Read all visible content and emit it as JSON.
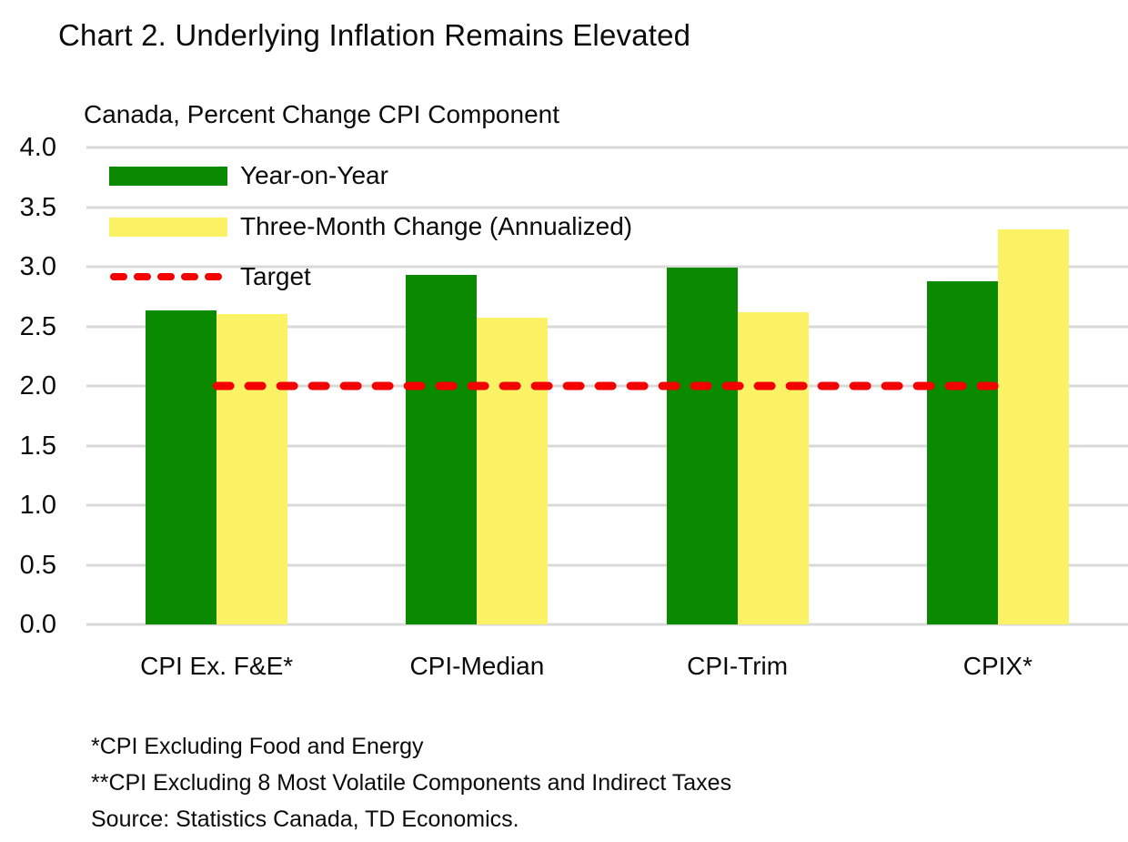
{
  "title": "Chart 2. Underlying Inflation Remains Elevated",
  "subtitle": "Canada, Percent Change CPI Component",
  "colors": {
    "green": "#0a8a00",
    "yellow": "#fbf266",
    "red": "#f40000",
    "gridline": "#d9d9d9",
    "text": "#0b0b0b"
  },
  "legend": {
    "position": "top-left",
    "items": [
      {
        "label": "Year-on-Year",
        "swatch": "green-rect",
        "color": "#0a8a00"
      },
      {
        "label": "Three-Month Change (Annualized)",
        "swatch": "yellow-rect",
        "color": "#fbf266"
      },
      {
        "label": "Target",
        "swatch": "red-dashed-line",
        "color": "#f40000"
      }
    ]
  },
  "chart_data": {
    "type": "bar",
    "title": "Chart 2. Underlying Inflation Remains Elevated",
    "subtitle": "Canada, Percent Change CPI Component",
    "categories": [
      "CPI Ex. F&E*",
      "CPI-Median",
      "CPI-Trim",
      "CPIX*"
    ],
    "series": [
      {
        "name": "Year-on-Year",
        "color": "#0a8a00",
        "values": [
          2.63,
          2.93,
          2.99,
          2.88
        ]
      },
      {
        "name": "Three-Month Change (Annualized)",
        "color": "#fbf266",
        "values": [
          2.6,
          2.57,
          2.62,
          3.31
        ]
      }
    ],
    "target_line": {
      "label": "Target",
      "value": 2.0,
      "color": "#f40000",
      "style": "dashed"
    },
    "xlabel": "",
    "ylabel": "",
    "ylim": [
      0,
      4
    ],
    "ytick_step": 0.5,
    "yticks": [
      "0.0",
      "0.5",
      "1.0",
      "1.5",
      "2.0",
      "2.5",
      "3.0",
      "3.5",
      "4.0"
    ],
    "grid": true,
    "legend_position": "top-left"
  },
  "footnotes": [
    "*CPI Excluding Food and Energy",
    "**CPI Excluding 8 Most Volatile Components and Indirect Taxes",
    "Source: Statistics Canada, TD Economics."
  ]
}
